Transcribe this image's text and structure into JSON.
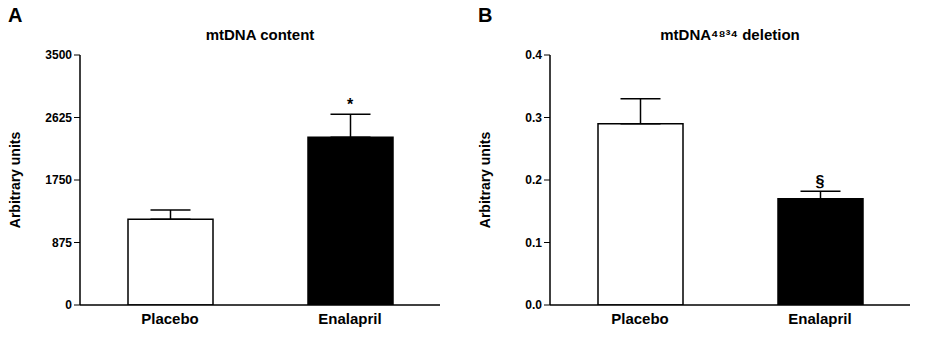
{
  "chart_data": [
    {
      "type": "bar",
      "panel": "A",
      "title": "mtDNA content",
      "ylabel": "Arbitrary units",
      "categories": [
        "Placebo",
        "Enalapril"
      ],
      "values": [
        1200,
        2350
      ],
      "errors": [
        130,
        320
      ],
      "colors": [
        "#ffffff",
        "#000000"
      ],
      "ylim": [
        0,
        3500
      ],
      "yticks": [
        0,
        875,
        1750,
        2625,
        3500
      ],
      "grid": false,
      "annotations": [
        {
          "text": "*",
          "category": "Enalapril"
        }
      ]
    },
    {
      "type": "bar",
      "panel": "B",
      "title": "mtDNA⁴⁸³⁴ deletion",
      "ylabel": "Arbitrary units",
      "categories": [
        "Placebo",
        "Enalapril"
      ],
      "values": [
        0.29,
        0.17
      ],
      "errors": [
        0.04,
        0.012
      ],
      "colors": [
        "#ffffff",
        "#000000"
      ],
      "ylim": [
        0,
        0.4
      ],
      "yticks": [
        {
          "value": 0,
          "label": "0.0"
        },
        0.1,
        0.2,
        0.3,
        0.4
      ],
      "grid": false,
      "annotations": [
        {
          "text": "§",
          "category": "Enalapril"
        }
      ]
    }
  ]
}
